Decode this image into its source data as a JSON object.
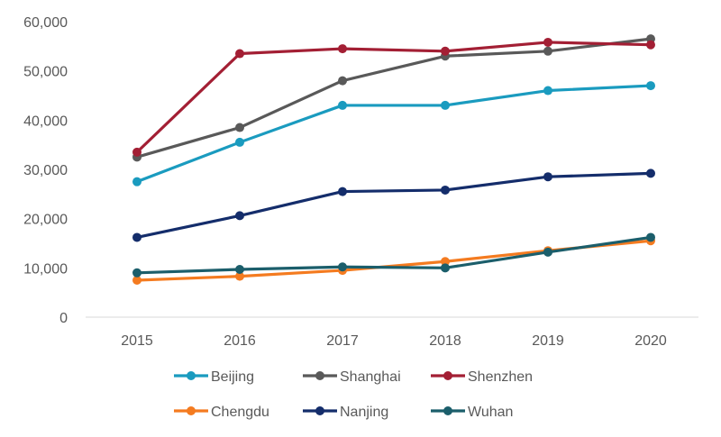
{
  "chart_data": {
    "type": "line",
    "title": "",
    "xlabel": "",
    "ylabel": "",
    "categories": [
      "2015",
      "2016",
      "2017",
      "2018",
      "2019",
      "2020"
    ],
    "ylim": [
      0,
      60000
    ],
    "yticks": [
      0,
      10000,
      20000,
      30000,
      40000,
      50000,
      60000
    ],
    "ytick_labels": [
      "0",
      "10,000",
      "20,000",
      "30,000",
      "40,000",
      "50,000",
      "60,000"
    ],
    "grid": false,
    "legend_position": "bottom",
    "series": [
      {
        "name": "Beijing",
        "color": "#1a9bbf",
        "values": [
          27500,
          35500,
          43000,
          43000,
          46000,
          47000
        ]
      },
      {
        "name": "Shanghai",
        "color": "#595959",
        "values": [
          32500,
          38500,
          48000,
          53000,
          54000,
          56500
        ]
      },
      {
        "name": "Shenzhen",
        "color": "#a31f34",
        "values": [
          33500,
          53500,
          54500,
          54000,
          55800,
          55300
        ]
      },
      {
        "name": "Chengdu",
        "color": "#f47b20",
        "values": [
          7500,
          8300,
          9500,
          11300,
          13500,
          15500
        ]
      },
      {
        "name": "Nanjing",
        "color": "#142d6b",
        "values": [
          16200,
          20600,
          25500,
          25800,
          28500,
          29200
        ]
      },
      {
        "name": "Wuhan",
        "color": "#1b5e6b",
        "values": [
          9000,
          9700,
          10200,
          10000,
          13200,
          16200
        ]
      }
    ]
  }
}
